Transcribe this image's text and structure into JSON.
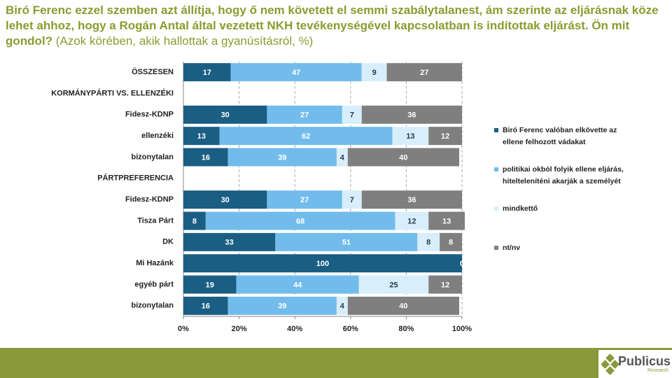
{
  "chart_data": {
    "type": "bar",
    "orientation": "horizontal",
    "stacked": true,
    "title": "Biró Ferenc ezzel szemben azt állítja, hogy ő nem követett el semmi szabálytalanest, ám szerinte az eljárásnak köze lehet ahhoz, hogy a Rogán Antal által vezetett NKH tevékenységével kapcsolatban is indítottak eljárást. Ön mit gondol?",
    "subtitle": "(Azok körében, akik hallottak a gyanúsításról, %)",
    "categories": [
      "ÖSSZESEN",
      "KORMÁNYPÁRTI VS. ELLENZÉKI",
      "Fidesz-KDNP",
      "ellenzéki",
      "bizonytalan",
      "PÁRTPREFERENCIA",
      "Fidesz-KDNP",
      "Tisza Párt",
      "DK",
      "Mi Hazánk",
      "egyéb párt",
      "bizonytalan"
    ],
    "series": [
      {
        "name": "Biró Ferenc valóban elkövette az ellene felhozott vádakat",
        "color": "#1b5e83",
        "label_color": "#ffffff",
        "values": [
          17,
          null,
          30,
          13,
          16,
          null,
          30,
          8,
          33,
          100,
          19,
          16
        ]
      },
      {
        "name": "politikai okból folyik ellene eljárás, hitelteleníténi akarják a személyét",
        "color": "#72bcec",
        "label_color": "#ffffff",
        "values": [
          47,
          null,
          27,
          62,
          39,
          null,
          27,
          68,
          51,
          null,
          44,
          39
        ]
      },
      {
        "name": "mindkettő",
        "color": "#d8eefa",
        "label_color": "#1f3a4d",
        "values": [
          9,
          null,
          7,
          13,
          4,
          null,
          7,
          12,
          8,
          null,
          25,
          4
        ]
      },
      {
        "name": "nt/nv",
        "color": "#7f7f7f",
        "label_color": "#ffffff",
        "values": [
          27,
          null,
          36,
          12,
          40,
          null,
          36,
          13,
          8,
          0,
          12,
          40
        ]
      }
    ],
    "xlim": [
      0,
      100
    ],
    "xticks": [
      {
        "value": 0,
        "label": "0%"
      },
      {
        "value": 20,
        "label": "20%"
      },
      {
        "value": 40,
        "label": "40%"
      },
      {
        "value": 60,
        "label": "60%"
      },
      {
        "value": 80,
        "label": "80%"
      },
      {
        "value": 100,
        "label": "100%"
      }
    ],
    "grid": true,
    "legend": "right"
  },
  "logo": {
    "name": "Publicus",
    "tagline": "Research"
  }
}
